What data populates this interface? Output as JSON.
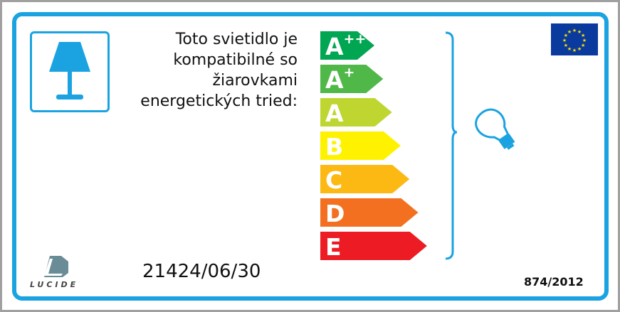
{
  "description": "Toto svietidlo je kompatibilné so žiarovkami energetických tried:",
  "description_lines": [
    "Toto svietidlo je",
    "kompatibilné so",
    "žiarovkami",
    "energetických tried:"
  ],
  "model_number": "21424/06/30",
  "regulation": "874/2012",
  "brand": "LUCIDE",
  "icons": {
    "lamp": "table-lamp-icon",
    "bulb": "light-bulb-icon",
    "flag": "eu-flag-icon"
  },
  "colors": {
    "frame": "#1ba3e1"
  },
  "classes": [
    {
      "base": "A",
      "sup": "++",
      "color": "#00a651"
    },
    {
      "base": "A",
      "sup": "+",
      "color": "#50b848"
    },
    {
      "base": "A",
      "sup": "",
      "color": "#bfd630"
    },
    {
      "base": "B",
      "sup": "",
      "color": "#fff200"
    },
    {
      "base": "C",
      "sup": "",
      "color": "#fdb913"
    },
    {
      "base": "D",
      "sup": "",
      "color": "#f37021"
    },
    {
      "base": "E",
      "sup": "",
      "color": "#ed1c24"
    }
  ]
}
